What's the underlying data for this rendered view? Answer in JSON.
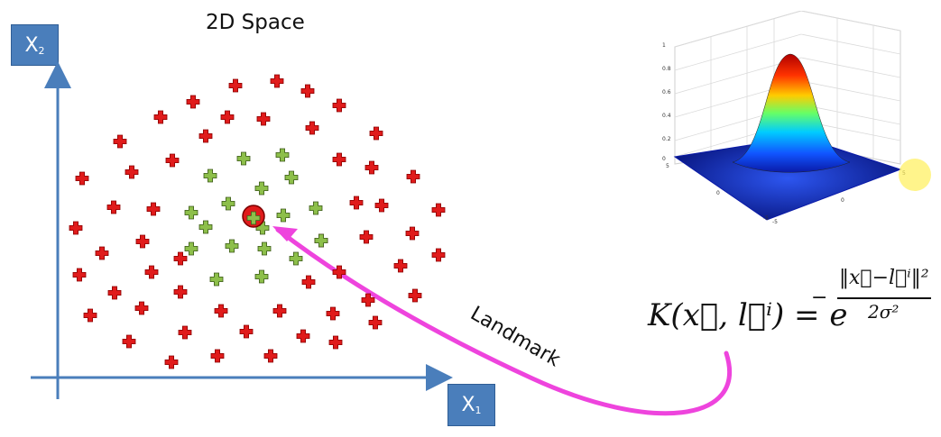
{
  "title": "2D Space",
  "axes": {
    "x_label": "X",
    "x_sub": "1",
    "y_label": "X",
    "y_sub": "2",
    "color": "#4a7ebb"
  },
  "annotation": {
    "label": "Landmark",
    "arrow_color": "#ee44dd"
  },
  "formula": {
    "lhs": "K(x⃗, l⃗ⁱ) = e",
    "exponent_numerator": "‖x⃗−l⃗ⁱ‖²",
    "exponent_denominator": "2σ²",
    "minus": "−"
  },
  "gaussian_plot": {
    "z_ticks": [
      "1",
      "0.8",
      "0.6",
      "0.4",
      "0.2",
      "0"
    ],
    "x_ticks": [
      "5",
      "0",
      "-5"
    ],
    "y_ticks": [
      "-5",
      "0",
      "5"
    ]
  },
  "points": {
    "red_color": "#e01b1b",
    "green_color": "#8dbf4a",
    "landmark_color": "#e01b1b"
  }
}
